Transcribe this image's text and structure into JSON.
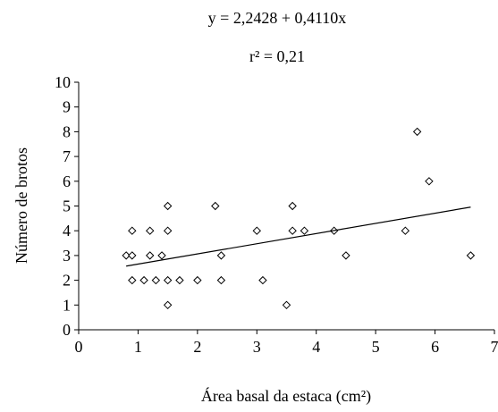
{
  "chart_data": {
    "type": "scatter",
    "annotations": [
      "y = 2,2428 + 0,4110x",
      "r² = 0,21"
    ],
    "xlabel": "Área basal da estaca (cm²)",
    "ylabel": "Número de brotos",
    "xlim": [
      0,
      7
    ],
    "ylim": [
      0,
      10
    ],
    "xticks": [
      "0",
      "1",
      "2",
      "3",
      "4",
      "5",
      "6",
      "7"
    ],
    "yticks": [
      "0",
      "1",
      "2",
      "3",
      "4",
      "5",
      "6",
      "7",
      "8",
      "9",
      "10"
    ],
    "grid": false,
    "points": [
      {
        "x": 0.8,
        "y": 3
      },
      {
        "x": 0.9,
        "y": 3
      },
      {
        "x": 0.9,
        "y": 4
      },
      {
        "x": 0.9,
        "y": 2
      },
      {
        "x": 1.1,
        "y": 2
      },
      {
        "x": 1.2,
        "y": 3
      },
      {
        "x": 1.2,
        "y": 4
      },
      {
        "x": 1.3,
        "y": 2
      },
      {
        "x": 1.4,
        "y": 3
      },
      {
        "x": 1.5,
        "y": 5
      },
      {
        "x": 1.5,
        "y": 4
      },
      {
        "x": 1.5,
        "y": 2
      },
      {
        "x": 1.5,
        "y": 1
      },
      {
        "x": 1.7,
        "y": 2
      },
      {
        "x": 2.0,
        "y": 2
      },
      {
        "x": 2.3,
        "y": 5
      },
      {
        "x": 2.4,
        "y": 3
      },
      {
        "x": 2.4,
        "y": 2
      },
      {
        "x": 3.0,
        "y": 4
      },
      {
        "x": 3.1,
        "y": 2
      },
      {
        "x": 3.5,
        "y": 1
      },
      {
        "x": 3.6,
        "y": 5
      },
      {
        "x": 3.6,
        "y": 4
      },
      {
        "x": 3.8,
        "y": 4
      },
      {
        "x": 4.3,
        "y": 4
      },
      {
        "x": 4.5,
        "y": 3
      },
      {
        "x": 5.5,
        "y": 4
      },
      {
        "x": 5.7,
        "y": 8
      },
      {
        "x": 5.9,
        "y": 6
      },
      {
        "x": 6.6,
        "y": 3
      }
    ],
    "trendline": {
      "intercept": 2.2428,
      "slope": 0.411,
      "x_start": 0.8,
      "x_end": 6.6
    }
  }
}
